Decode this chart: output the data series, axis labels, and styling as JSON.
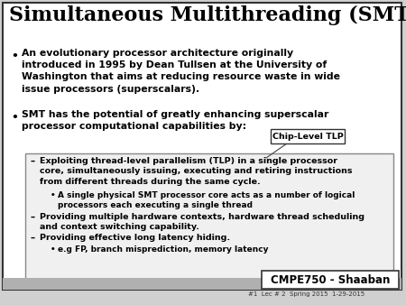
{
  "title": "Simultaneous Multithreading (SMT)",
  "bg_color": "#d0d0d0",
  "slide_bg": "#ffffff",
  "border_color": "#333333",
  "chip_label": "Chip-Level TLP",
  "footer_label": "CMPE750 - Shaaban",
  "footer_small": "#1  Lec # 2  Spring 2015  1-29-2015",
  "title_color": "#000000",
  "text_color": "#000000"
}
